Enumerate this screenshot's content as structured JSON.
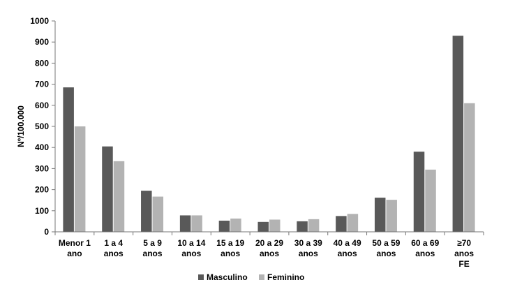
{
  "chart_data": {
    "type": "bar",
    "ylabel": "Nº/100.000",
    "ylim": [
      0,
      1000
    ],
    "yticks": [
      0,
      100,
      200,
      300,
      400,
      500,
      600,
      700,
      800,
      900,
      1000
    ],
    "grid": false,
    "legend_position": "bottom",
    "categories": [
      [
        "Menor 1",
        "ano"
      ],
      [
        "1 a 4",
        "anos"
      ],
      [
        "5 a 9",
        "anos"
      ],
      [
        "10 a 14",
        "anos"
      ],
      [
        "15 a 19",
        "anos"
      ],
      [
        "20 a 29",
        "anos"
      ],
      [
        "30 a 39",
        "anos"
      ],
      [
        "40 a 49",
        "anos"
      ],
      [
        "50 a 59",
        "anos"
      ],
      [
        "60 a 69",
        "anos"
      ],
      [
        "≥70",
        "anos",
        "FE"
      ]
    ],
    "series": [
      {
        "name": "Masculino",
        "color": "#595959",
        "values": [
          685,
          405,
          195,
          78,
          53,
          47,
          50,
          75,
          162,
          380,
          930
        ]
      },
      {
        "name": "Feminino",
        "color": "#b3b3b3",
        "values": [
          500,
          335,
          167,
          78,
          63,
          58,
          60,
          85,
          152,
          295,
          610
        ]
      }
    ]
  }
}
